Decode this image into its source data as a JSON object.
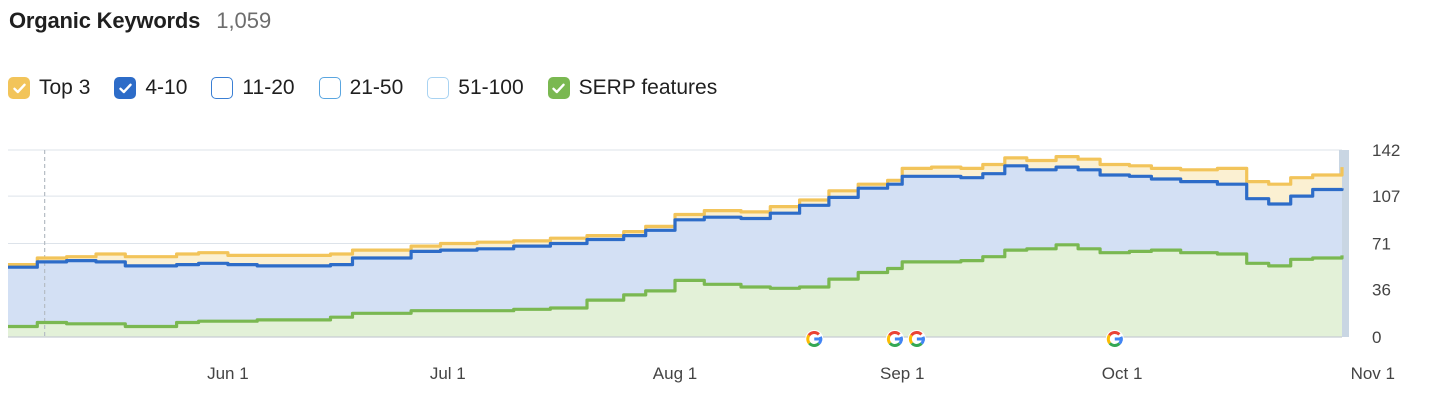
{
  "header": {
    "title": "Organic Keywords",
    "total": "1,059"
  },
  "legend": [
    {
      "label": "Top 3",
      "checked": true,
      "color": "#f2c45a",
      "icon": "check-icon"
    },
    {
      "label": "4-10",
      "checked": true,
      "color": "#2d6cc8",
      "icon": "check-icon"
    },
    {
      "label": "11-20",
      "checked": false,
      "color": "#3a7fd4"
    },
    {
      "label": "21-50",
      "checked": false,
      "color": "#5aa6e0"
    },
    {
      "label": "51-100",
      "checked": false,
      "color": "#a9d3f2"
    },
    {
      "label": "SERP features",
      "checked": true,
      "color": "#7ab851",
      "icon": "check-icon"
    }
  ],
  "colors": {
    "top3_line": "#f2c45a",
    "top3_fill": "#fbf0d2",
    "pos4_10_line": "#2d6cc8",
    "pos4_10_fill": "#d3e0f4",
    "serp_line": "#7ab851",
    "serp_fill": "#e3f1d8",
    "grid": "#dde3ea",
    "axis": "#c8cdd3",
    "right_band": "#c9d6e3"
  },
  "chart_data": {
    "type": "area",
    "x_unit": "date",
    "x_ticks": [
      {
        "label": "Jun 1",
        "date": "2023-06-01"
      },
      {
        "label": "Jul 1",
        "date": "2023-07-01"
      },
      {
        "label": "Aug 1",
        "date": "2023-08-01"
      },
      {
        "label": "Sep 1",
        "date": "2023-09-01"
      },
      {
        "label": "Oct 1",
        "date": "2023-10-01"
      },
      {
        "label": "Nov 1",
        "date": "2023-11-01"
      }
    ],
    "y_ticks": [
      0,
      36,
      71,
      107,
      142
    ],
    "ylim": [
      0,
      142
    ],
    "grid": true,
    "x_start": "2023-05-02",
    "x_end": "2023-10-31",
    "dashed_marker_date": "2023-05-07",
    "google_update_dates": [
      "2023-08-20",
      "2023-08-31",
      "2023-09-03",
      "2023-09-30"
    ],
    "series": [
      {
        "name": "Top 3",
        "values": [
          [
            "2023-05-02",
            55
          ],
          [
            "2023-05-06",
            60
          ],
          [
            "2023-05-10",
            61
          ],
          [
            "2023-05-14",
            63
          ],
          [
            "2023-05-18",
            61
          ],
          [
            "2023-05-22",
            61
          ],
          [
            "2023-05-25",
            63
          ],
          [
            "2023-05-28",
            64
          ],
          [
            "2023-06-01",
            62
          ],
          [
            "2023-06-05",
            62
          ],
          [
            "2023-06-10",
            62
          ],
          [
            "2023-06-15",
            63
          ],
          [
            "2023-06-18",
            66
          ],
          [
            "2023-06-22",
            66
          ],
          [
            "2023-06-26",
            69
          ],
          [
            "2023-06-30",
            71
          ],
          [
            "2023-07-05",
            72
          ],
          [
            "2023-07-10",
            73
          ],
          [
            "2023-07-15",
            75
          ],
          [
            "2023-07-20",
            77
          ],
          [
            "2023-07-25",
            80
          ],
          [
            "2023-07-28",
            84
          ],
          [
            "2023-08-01",
            93
          ],
          [
            "2023-08-05",
            96
          ],
          [
            "2023-08-10",
            95
          ],
          [
            "2023-08-14",
            99
          ],
          [
            "2023-08-18",
            104
          ],
          [
            "2023-08-22",
            111
          ],
          [
            "2023-08-26",
            116
          ],
          [
            "2023-08-30",
            119
          ],
          [
            "2023-09-01",
            128
          ],
          [
            "2023-09-05",
            129
          ],
          [
            "2023-09-09",
            128
          ],
          [
            "2023-09-12",
            131
          ],
          [
            "2023-09-15",
            136
          ],
          [
            "2023-09-18",
            134
          ],
          [
            "2023-09-22",
            137
          ],
          [
            "2023-09-25",
            135
          ],
          [
            "2023-09-28",
            131
          ],
          [
            "2023-10-02",
            130
          ],
          [
            "2023-10-05",
            128
          ],
          [
            "2023-10-09",
            127
          ],
          [
            "2023-10-14",
            128
          ],
          [
            "2023-10-18",
            118
          ],
          [
            "2023-10-21",
            116
          ],
          [
            "2023-10-24",
            121
          ],
          [
            "2023-10-27",
            123
          ],
          [
            "2023-10-31",
            129
          ]
        ]
      },
      {
        "name": "4-10",
        "values": [
          [
            "2023-05-02",
            53
          ],
          [
            "2023-05-06",
            57
          ],
          [
            "2023-05-10",
            58
          ],
          [
            "2023-05-14",
            57
          ],
          [
            "2023-05-18",
            54
          ],
          [
            "2023-05-22",
            54
          ],
          [
            "2023-05-25",
            55
          ],
          [
            "2023-05-28",
            56
          ],
          [
            "2023-06-01",
            55
          ],
          [
            "2023-06-05",
            54
          ],
          [
            "2023-06-10",
            54
          ],
          [
            "2023-06-15",
            55
          ],
          [
            "2023-06-18",
            60
          ],
          [
            "2023-06-22",
            60
          ],
          [
            "2023-06-26",
            65
          ],
          [
            "2023-06-30",
            66
          ],
          [
            "2023-07-05",
            67
          ],
          [
            "2023-07-10",
            69
          ],
          [
            "2023-07-15",
            71
          ],
          [
            "2023-07-20",
            74
          ],
          [
            "2023-07-25",
            77
          ],
          [
            "2023-07-28",
            81
          ],
          [
            "2023-08-01",
            89
          ],
          [
            "2023-08-05",
            91
          ],
          [
            "2023-08-10",
            90
          ],
          [
            "2023-08-14",
            94
          ],
          [
            "2023-08-18",
            100
          ],
          [
            "2023-08-22",
            106
          ],
          [
            "2023-08-26",
            113
          ],
          [
            "2023-08-30",
            116
          ],
          [
            "2023-09-01",
            122
          ],
          [
            "2023-09-05",
            122
          ],
          [
            "2023-09-09",
            121
          ],
          [
            "2023-09-12",
            124
          ],
          [
            "2023-09-15",
            130
          ],
          [
            "2023-09-18",
            127
          ],
          [
            "2023-09-22",
            129
          ],
          [
            "2023-09-25",
            127
          ],
          [
            "2023-09-28",
            123
          ],
          [
            "2023-10-02",
            122
          ],
          [
            "2023-10-05",
            120
          ],
          [
            "2023-10-09",
            118
          ],
          [
            "2023-10-14",
            116
          ],
          [
            "2023-10-18",
            105
          ],
          [
            "2023-10-21",
            101
          ],
          [
            "2023-10-24",
            107
          ],
          [
            "2023-10-27",
            112
          ],
          [
            "2023-10-31",
            113
          ]
        ]
      },
      {
        "name": "SERP features",
        "values": [
          [
            "2023-05-02",
            8
          ],
          [
            "2023-05-06",
            11
          ],
          [
            "2023-05-10",
            10
          ],
          [
            "2023-05-14",
            10
          ],
          [
            "2023-05-18",
            8
          ],
          [
            "2023-05-22",
            8
          ],
          [
            "2023-05-25",
            11
          ],
          [
            "2023-05-28",
            12
          ],
          [
            "2023-06-01",
            12
          ],
          [
            "2023-06-05",
            13
          ],
          [
            "2023-06-10",
            13
          ],
          [
            "2023-06-15",
            15
          ],
          [
            "2023-06-18",
            18
          ],
          [
            "2023-06-22",
            18
          ],
          [
            "2023-06-26",
            20
          ],
          [
            "2023-06-30",
            20
          ],
          [
            "2023-07-05",
            20
          ],
          [
            "2023-07-10",
            21
          ],
          [
            "2023-07-15",
            22
          ],
          [
            "2023-07-20",
            28
          ],
          [
            "2023-07-25",
            32
          ],
          [
            "2023-07-28",
            35
          ],
          [
            "2023-08-01",
            43
          ],
          [
            "2023-08-05",
            40
          ],
          [
            "2023-08-10",
            38
          ],
          [
            "2023-08-14",
            37
          ],
          [
            "2023-08-18",
            38
          ],
          [
            "2023-08-22",
            44
          ],
          [
            "2023-08-26",
            49
          ],
          [
            "2023-08-30",
            52
          ],
          [
            "2023-09-01",
            57
          ],
          [
            "2023-09-05",
            57
          ],
          [
            "2023-09-09",
            58
          ],
          [
            "2023-09-12",
            61
          ],
          [
            "2023-09-15",
            66
          ],
          [
            "2023-09-18",
            67
          ],
          [
            "2023-09-22",
            70
          ],
          [
            "2023-09-25",
            67
          ],
          [
            "2023-09-28",
            64
          ],
          [
            "2023-10-02",
            65
          ],
          [
            "2023-10-05",
            66
          ],
          [
            "2023-10-09",
            64
          ],
          [
            "2023-10-14",
            63
          ],
          [
            "2023-10-18",
            56
          ],
          [
            "2023-10-21",
            54
          ],
          [
            "2023-10-24",
            59
          ],
          [
            "2023-10-27",
            60
          ],
          [
            "2023-10-31",
            62
          ]
        ]
      }
    ]
  }
}
